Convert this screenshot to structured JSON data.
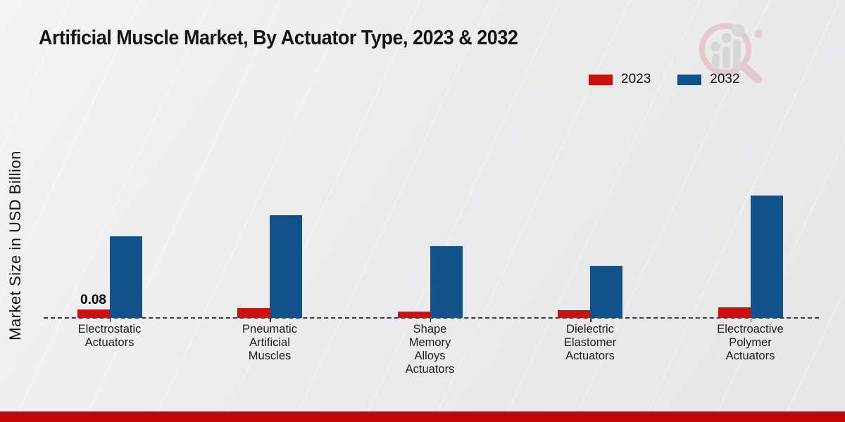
{
  "title": "Artificial Muscle Market, By Actuator Type, 2023 & 2032",
  "watermark_icon": "magnifier-bar-chart-icon",
  "accent": {
    "footer_bar_color": "#c00606",
    "series_2023_color": "#cc0f0f",
    "series_2032_color": "#11518c"
  },
  "chart_data": {
    "type": "bar",
    "title": "Artificial Muscle Market, By Actuator Type, 2023 & 2032",
    "xlabel": "",
    "ylabel": "Market Size in USD Billion",
    "categories": [
      "Electrostatic\nActuators",
      "Pneumatic\nArtificial\nMuscles",
      "Shape\nMemory\nAlloys\nActuators",
      "Dielectric\nElastomer\nActuators",
      "Electroactive\nPolymer\nActuators"
    ],
    "series": [
      {
        "name": "2023",
        "color": "#cc0f0f",
        "values": [
          0.08,
          0.09,
          0.06,
          0.07,
          0.1
        ]
      },
      {
        "name": "2032",
        "color": "#11518c",
        "values": [
          0.77,
          0.97,
          0.68,
          0.49,
          1.16
        ]
      }
    ],
    "annotations": [
      {
        "series_index": 0,
        "category_index": 0,
        "text": "0.08"
      }
    ],
    "ylim": [
      0,
      1.25
    ],
    "grid": false,
    "y_axis_ticks_visible": false,
    "baseline_style": "dashed",
    "legend_position": "top-right"
  }
}
